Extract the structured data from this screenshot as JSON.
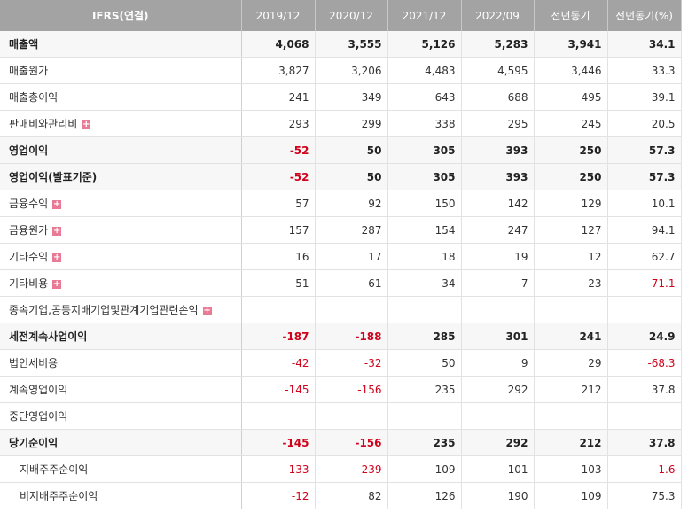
{
  "table": {
    "header": [
      "IFRS(연결)",
      "2019/12",
      "2020/12",
      "2021/12",
      "2022/09",
      "전년동기",
      "전년동기(%)"
    ],
    "rows": [
      {
        "label": "매출액",
        "bold": true,
        "values": [
          "4,068",
          "3,555",
          "5,126",
          "5,283",
          "3,941",
          "34.1"
        ]
      },
      {
        "label": "매출원가",
        "values": [
          "3,827",
          "3,206",
          "4,483",
          "4,595",
          "3,446",
          "33.3"
        ]
      },
      {
        "label": "매출총이익",
        "values": [
          "241",
          "349",
          "643",
          "688",
          "495",
          "39.1"
        ]
      },
      {
        "label": "판매비와관리비",
        "expandable": true,
        "values": [
          "293",
          "299",
          "338",
          "295",
          "245",
          "20.5"
        ]
      },
      {
        "label": "영업이익",
        "bold": true,
        "values": [
          "-52",
          "50",
          "305",
          "393",
          "250",
          "57.3"
        ]
      },
      {
        "label": "영업이익(발표기준)",
        "bold": true,
        "values": [
          "-52",
          "50",
          "305",
          "393",
          "250",
          "57.3"
        ]
      },
      {
        "label": "금융수익",
        "expandable": true,
        "values": [
          "57",
          "92",
          "150",
          "142",
          "129",
          "10.1"
        ]
      },
      {
        "label": "금융원가",
        "expandable": true,
        "values": [
          "157",
          "287",
          "154",
          "247",
          "127",
          "94.1"
        ]
      },
      {
        "label": "기타수익",
        "expandable": true,
        "values": [
          "16",
          "17",
          "18",
          "19",
          "12",
          "62.7"
        ]
      },
      {
        "label": "기타비용",
        "expandable": true,
        "values": [
          "51",
          "61",
          "34",
          "7",
          "23",
          "-71.1"
        ]
      },
      {
        "label": "종속기업,공동지배기업및관계기업관련손익",
        "expandable": true,
        "values": [
          null,
          null,
          null,
          null,
          null,
          null
        ]
      },
      {
        "label": "세전계속사업이익",
        "bold": true,
        "values": [
          "-187",
          "-188",
          "285",
          "301",
          "241",
          "24.9"
        ]
      },
      {
        "label": "법인세비용",
        "values": [
          "-42",
          "-32",
          "50",
          "9",
          "29",
          "-68.3"
        ]
      },
      {
        "label": "계속영업이익",
        "values": [
          "-145",
          "-156",
          "235",
          "292",
          "212",
          "37.8"
        ]
      },
      {
        "label": "중단영업이익",
        "values": [
          null,
          null,
          null,
          null,
          null,
          null
        ]
      },
      {
        "label": "당기순이익",
        "bold": true,
        "values": [
          "-145",
          "-156",
          "235",
          "292",
          "212",
          "37.8"
        ]
      },
      {
        "label": "지배주주순이익",
        "indent": true,
        "values": [
          "-133",
          "-239",
          "109",
          "101",
          "103",
          "-1.6"
        ]
      },
      {
        "label": "비지배주주순이익",
        "indent": true,
        "values": [
          "-12",
          "82",
          "126",
          "190",
          "109",
          "75.3"
        ]
      }
    ]
  }
}
